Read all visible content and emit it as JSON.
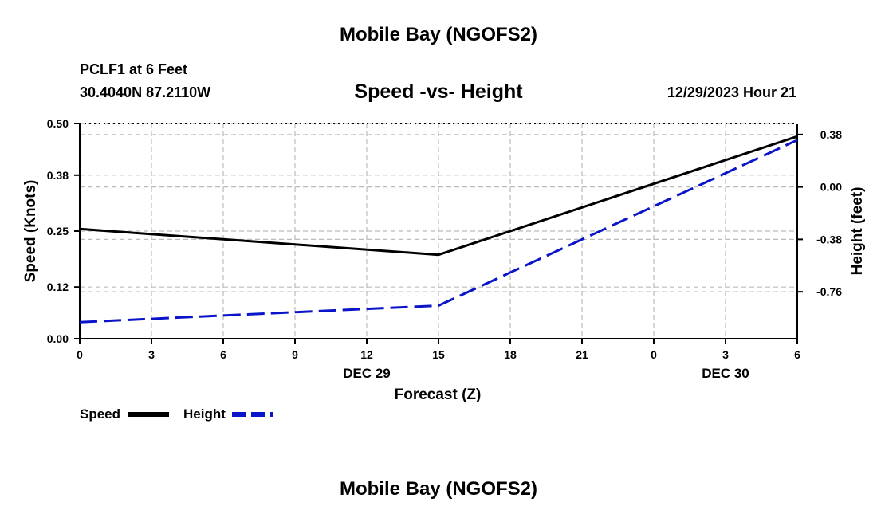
{
  "header": {
    "title": "Mobile Bay (NGOFS2)",
    "station_line": "PCLF1 at 6 Feet",
    "coords_line": "30.4040N  87.2110W",
    "chart_title": "Speed -vs- Height",
    "datetime": "12/29/2023 Hour 21"
  },
  "footer": {
    "title": "Mobile Bay (NGOFS2)"
  },
  "colors": {
    "speed": "#000000",
    "height": "#0a14c8",
    "grid": "#bbbbbb"
  },
  "chart_data": {
    "type": "line",
    "title": "Speed -vs- Height",
    "xlabel": "Forecast (Z)",
    "ylabel": "Speed (Knots)",
    "y2label": "Height (feet)",
    "x": [
      0,
      3,
      6,
      9,
      12,
      15,
      18,
      21,
      24,
      27,
      30
    ],
    "xtick_labels": [
      "0",
      "3",
      "6",
      "9",
      "12",
      "15",
      "18",
      "21",
      "0",
      "3",
      "6"
    ],
    "xlim": [
      0,
      30
    ],
    "date_labels": [
      {
        "x": 12,
        "text": "DEC 29"
      },
      {
        "x": 27,
        "text": "DEC 30"
      }
    ],
    "ylim": [
      0,
      0.5
    ],
    "yticks": [
      "0.00",
      "0.12",
      "0.25",
      "0.38",
      "0.50"
    ],
    "y2lim": [
      -1.1,
      0.46
    ],
    "y2ticks": [
      "-0.76",
      "-0.38",
      "0.00",
      "0.38"
    ],
    "grid": true,
    "legend": "bottom-left",
    "series": [
      {
        "name": "Speed",
        "axis": "left",
        "style": "solid",
        "x": [
          0,
          15,
          30
        ],
        "values": [
          0.255,
          0.195,
          0.47
        ]
      },
      {
        "name": "Height",
        "axis": "right",
        "style": "dashed",
        "x": [
          0,
          15,
          30
        ],
        "values": [
          -0.98,
          -0.86,
          0.34
        ]
      }
    ]
  }
}
